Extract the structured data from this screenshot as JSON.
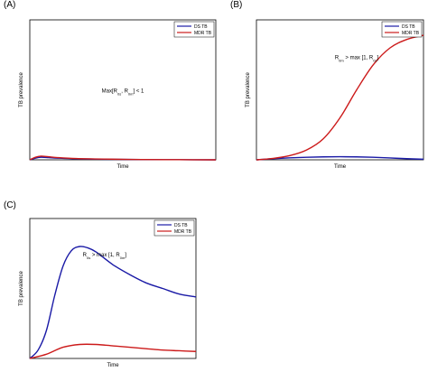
{
  "colors": {
    "ds": "#1a1aa6",
    "mdr": "#cc1a1a"
  },
  "chart_data": [
    {
      "panel": "(A)",
      "type": "line",
      "xlabel": "Time",
      "ylabel": "TB prevalence",
      "ylim": [
        0,
        1
      ],
      "legend": {
        "placement": "top-right",
        "entries": [
          "DS TB",
          "MDR TB"
        ]
      },
      "annotation": {
        "pre": "Max[R",
        "s1": "0s",
        "mid": ", R",
        "s2": "0m",
        "post": "] < 1"
      },
      "series": [
        {
          "name": "DS TB",
          "color": "#1a1aa6",
          "x": [
            0,
            0.03,
            0.06,
            0.1,
            0.15,
            0.25,
            0.4,
            0.6,
            0.8,
            1.0
          ],
          "y": [
            0,
            0.012,
            0.018,
            0.016,
            0.012,
            0.007,
            0.004,
            0.002,
            0.001,
            0.0
          ]
        },
        {
          "name": "MDR TB",
          "color": "#cc1a1a",
          "x": [
            0,
            0.03,
            0.06,
            0.1,
            0.15,
            0.25,
            0.4,
            0.6,
            0.8,
            1.0
          ],
          "y": [
            0,
            0.018,
            0.026,
            0.022,
            0.016,
            0.009,
            0.005,
            0.002,
            0.001,
            0.0
          ]
        }
      ]
    },
    {
      "panel": "(B)",
      "type": "line",
      "xlabel": "Time",
      "ylabel": "TB prevalence",
      "ylim": [
        0,
        1
      ],
      "legend": {
        "placement": "top-right",
        "entries": [
          "DS TB",
          "MDR TB"
        ]
      },
      "annotation": {
        "pre": "R",
        "s1": "0m",
        "mid": " > max [1, R",
        "s2": "0s",
        "post": "]"
      },
      "series": [
        {
          "name": "DS TB",
          "color": "#1a1aa6",
          "x": [
            0,
            0.1,
            0.2,
            0.3,
            0.4,
            0.5,
            0.6,
            0.7,
            0.8,
            0.9,
            1.0
          ],
          "y": [
            0,
            0.008,
            0.014,
            0.018,
            0.021,
            0.022,
            0.021,
            0.018,
            0.013,
            0.008,
            0.004
          ]
        },
        {
          "name": "MDR TB",
          "color": "#cc1a1a",
          "x": [
            0,
            0.1,
            0.2,
            0.3,
            0.4,
            0.5,
            0.6,
            0.7,
            0.8,
            0.9,
            1.0
          ],
          "y": [
            0,
            0.01,
            0.03,
            0.07,
            0.15,
            0.3,
            0.5,
            0.68,
            0.8,
            0.86,
            0.89
          ]
        }
      ]
    },
    {
      "panel": "(C)",
      "type": "line",
      "xlabel": "Time",
      "ylabel": "TB prevalence",
      "ylim": [
        0,
        1
      ],
      "legend": {
        "placement": "top-right",
        "entries": [
          "DS TB",
          "MDR TB"
        ]
      },
      "annotation": {
        "pre": "R",
        "s1": "0s",
        "mid": " > max [1, R",
        "s2": "0m",
        "post": "]"
      },
      "series": [
        {
          "name": "DS TB",
          "color": "#1a1aa6",
          "x": [
            0,
            0.05,
            0.1,
            0.15,
            0.2,
            0.25,
            0.3,
            0.35,
            0.4,
            0.5,
            0.6,
            0.7,
            0.8,
            0.9,
            1.0
          ],
          "y": [
            0,
            0.06,
            0.2,
            0.45,
            0.66,
            0.77,
            0.8,
            0.79,
            0.76,
            0.67,
            0.6,
            0.54,
            0.5,
            0.46,
            0.44
          ]
        },
        {
          "name": "MDR TB",
          "color": "#cc1a1a",
          "x": [
            0,
            0.1,
            0.2,
            0.3,
            0.4,
            0.5,
            0.6,
            0.7,
            0.8,
            0.9,
            1.0
          ],
          "y": [
            0,
            0.03,
            0.08,
            0.1,
            0.1,
            0.09,
            0.08,
            0.07,
            0.06,
            0.055,
            0.05
          ]
        }
      ]
    }
  ]
}
